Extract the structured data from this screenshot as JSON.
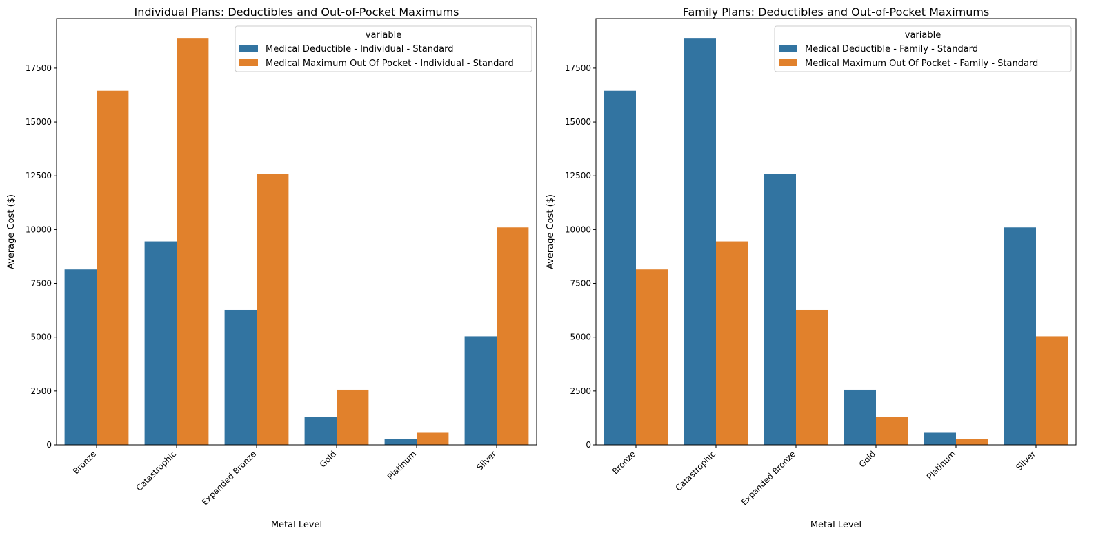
{
  "chart_data": [
    {
      "type": "bar",
      "title": "Individual Plans: Deductibles and Out-of-Pocket Maximums",
      "xlabel": "Metal Level",
      "ylabel": "Average Cost ($)",
      "categories": [
        "Bronze",
        "Catastrophic",
        "Expanded Bronze",
        "Gold",
        "Platinum",
        "Silver"
      ],
      "ylim": [
        0,
        19800
      ],
      "yticks": [
        0,
        2500,
        5000,
        7500,
        10000,
        12500,
        15000,
        17500
      ],
      "legend": {
        "title": "variable",
        "position": "top-right"
      },
      "series": [
        {
          "name": "Medical Deductible - Individual - Standard",
          "color": "#3274a1",
          "values": [
            8150,
            9450,
            6270,
            1300,
            270,
            5040
          ]
        },
        {
          "name": "Medical Maximum Out Of Pocket - Individual - Standard",
          "color": "#e1812c",
          "values": [
            16450,
            18900,
            12600,
            2560,
            560,
            10100
          ]
        }
      ]
    },
    {
      "type": "bar",
      "title": "Family Plans: Deductibles and Out-of-Pocket Maximums",
      "xlabel": "Metal Level",
      "ylabel": "Average Cost ($)",
      "categories": [
        "Bronze",
        "Catastrophic",
        "Expanded Bronze",
        "Gold",
        "Platinum",
        "Silver"
      ],
      "ylim": [
        0,
        19800
      ],
      "yticks": [
        0,
        2500,
        5000,
        7500,
        10000,
        12500,
        15000,
        17500
      ],
      "legend": {
        "title": "variable",
        "position": "top-right"
      },
      "series": [
        {
          "name": "Medical Deductible - Family - Standard",
          "color": "#3274a1",
          "values": [
            16450,
            18900,
            12600,
            2560,
            560,
            10100
          ]
        },
        {
          "name": "Medical Maximum Out Of Pocket - Family - Standard",
          "color": "#e1812c",
          "values": [
            8150,
            9450,
            6270,
            1300,
            270,
            5040
          ]
        }
      ]
    }
  ]
}
